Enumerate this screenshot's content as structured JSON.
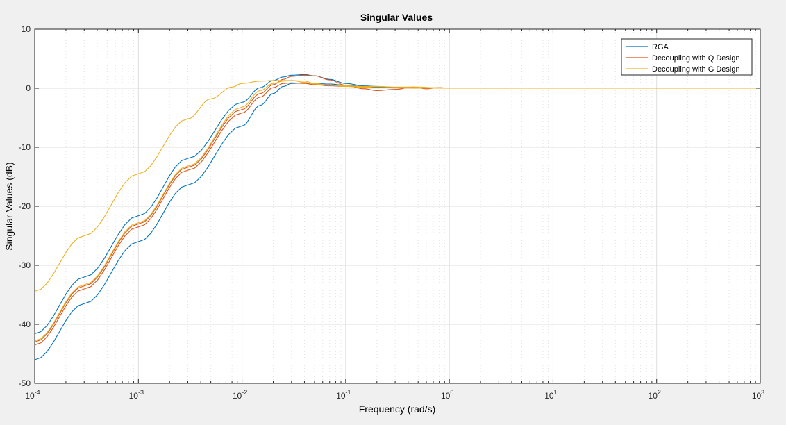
{
  "chart_data": {
    "type": "line",
    "title": "Singular Values",
    "xlabel": "Frequency (rad/s)",
    "ylabel": "Singular Values (dB)",
    "xscale": "log",
    "xlim": [
      0.0001,
      1000
    ],
    "ylim": [
      -50,
      10
    ],
    "yticks": [
      10,
      0,
      -10,
      -20,
      -30,
      -40,
      -50
    ],
    "xtick_decades": [
      -4,
      -3,
      -2,
      -1,
      0,
      1,
      2,
      3
    ],
    "xtick_base": "10",
    "grid": true,
    "legend_position": "top-right",
    "series": [
      {
        "name": "RGA",
        "color": "#0072BD",
        "lines": [
          {
            "x": [
              0.0001,
              0.0003,
              0.001,
              0.003,
              0.01,
              0.015,
              0.02,
              0.025,
              0.03,
              0.04,
              0.05,
              0.07,
              0.1,
              0.15,
              0.2,
              0.3,
              0.5,
              1,
              10,
              1000
            ],
            "y": [
              -41.6,
              -32.0,
              -21.6,
              -11.9,
              -2.4,
              0.1,
              1.3,
              1.9,
              2.2,
              2.3,
              2.1,
              1.5,
              0.8,
              0.4,
              0.3,
              0.1,
              0.05,
              0.0,
              0.0,
              0.0
            ]
          },
          {
            "x": [
              0.0001,
              0.0003,
              0.001,
              0.003,
              0.01,
              0.015,
              0.02,
              0.025,
              0.03,
              0.04,
              0.05,
              0.07,
              0.1,
              0.15,
              0.2,
              0.3,
              0.5,
              1,
              10,
              1000
            ],
            "y": [
              -46.0,
              -36.5,
              -26.0,
              -16.4,
              -6.4,
              -2.9,
              -0.9,
              0.3,
              0.8,
              0.9,
              0.8,
              0.7,
              0.5,
              0.3,
              0.2,
              0.1,
              0.05,
              0.0,
              0.0,
              0.0
            ]
          }
        ]
      },
      {
        "name": "Decoupling with Q Design",
        "color": "#D95319",
        "lines": [
          {
            "x": [
              0.0001,
              0.0003,
              0.001,
              0.003,
              0.01,
              0.015,
              0.02,
              0.025,
              0.03,
              0.04,
              0.05,
              0.07,
              0.1,
              0.15,
              0.2,
              0.3,
              0.45,
              0.6,
              0.8,
              1,
              2,
              10,
              1000
            ],
            "y": [
              -43.0,
              -33.5,
              -23.0,
              -13.4,
              -3.6,
              -0.9,
              0.6,
              1.5,
              2.0,
              2.2,
              2.1,
              1.4,
              0.5,
              -0.1,
              -0.4,
              -0.2,
              0.2,
              -0.1,
              0.1,
              0.0,
              0.0,
              0.0,
              0.0
            ]
          },
          {
            "x": [
              0.0001,
              0.0003,
              0.001,
              0.003,
              0.01,
              0.015,
              0.02,
              0.025,
              0.03,
              0.04,
              0.05,
              0.07,
              0.1,
              0.15,
              0.2,
              0.3,
              0.5,
              1,
              10,
              1000
            ],
            "y": [
              -43.5,
              -34.0,
              -23.5,
              -13.9,
              -4.2,
              -1.5,
              0.1,
              0.8,
              0.9,
              0.8,
              0.6,
              0.4,
              0.3,
              0.2,
              0.1,
              0.05,
              0.02,
              0.0,
              0.0,
              0.0
            ]
          }
        ]
      },
      {
        "name": "Decoupling with G Design",
        "color": "#EDB120",
        "lines": [
          {
            "x": [
              0.0001,
              0.0003,
              0.001,
              0.003,
              0.005,
              0.008,
              0.01,
              0.015,
              0.02,
              0.03,
              0.04,
              0.05,
              0.07,
              0.1,
              0.15,
              0.2,
              0.3,
              0.5,
              0.7,
              1,
              10,
              1000
            ],
            "y": [
              -34.4,
              -25.0,
              -14.5,
              -5.2,
              -1.8,
              0.2,
              0.8,
              1.2,
              1.3,
              1.3,
              1.0,
              0.7,
              0.5,
              0.4,
              0.3,
              0.3,
              0.2,
              0.2,
              0.1,
              0.0,
              0.0,
              0.0
            ]
          },
          {
            "x": [
              0.0001,
              0.0003,
              0.001,
              0.003,
              0.01,
              0.015,
              0.02,
              0.025,
              0.03,
              0.04,
              0.05,
              0.07,
              0.1,
              0.15,
              0.2,
              0.3,
              0.5,
              1,
              10,
              1000
            ],
            "y": [
              -42.8,
              -33.3,
              -22.8,
              -13.2,
              -3.2,
              -0.4,
              0.8,
              1.2,
              1.3,
              1.2,
              0.8,
              0.5,
              0.3,
              0.2,
              0.1,
              0.05,
              0.02,
              0.0,
              0.0,
              0.0
            ]
          }
        ]
      }
    ]
  }
}
